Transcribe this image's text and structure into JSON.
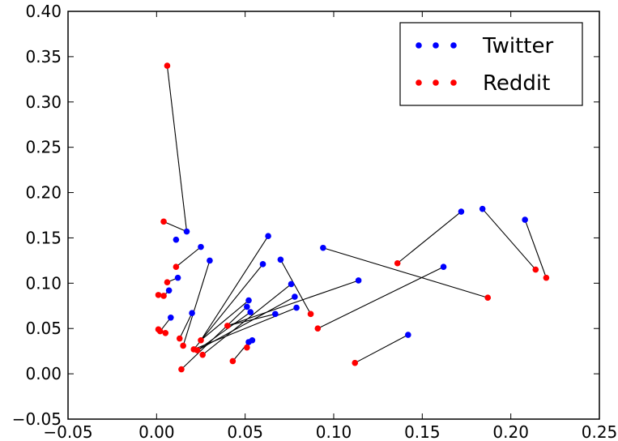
{
  "chart_data": {
    "type": "scatter",
    "title": "",
    "xlabel": "",
    "ylabel": "",
    "xlim": [
      -0.05,
      0.25
    ],
    "ylim": [
      -0.05,
      0.4
    ],
    "x_ticks": [
      "−0.05",
      "0.00",
      "0.05",
      "0.10",
      "0.15",
      "0.20",
      "0.25"
    ],
    "x_tick_values": [
      -0.05,
      0.0,
      0.05,
      0.1,
      0.15,
      0.2,
      0.25
    ],
    "y_ticks": [
      "−0.05",
      "0.00",
      "0.05",
      "0.10",
      "0.15",
      "0.20",
      "0.25",
      "0.30",
      "0.35",
      "0.40"
    ],
    "y_tick_values": [
      -0.05,
      0.0,
      0.05,
      0.1,
      0.15,
      0.2,
      0.25,
      0.3,
      0.35,
      0.4
    ],
    "grid": false,
    "legend": "top-right",
    "series": [
      {
        "name": "Twitter",
        "color": "#0000ff",
        "points": [
          [
            0.017,
            0.157
          ],
          [
            0.011,
            0.148
          ],
          [
            0.025,
            0.14
          ],
          [
            0.012,
            0.106
          ],
          [
            0.007,
            0.092
          ],
          [
            0.008,
            0.062
          ],
          [
            0.02,
            0.067
          ],
          [
            0.03,
            0.125
          ],
          [
            0.063,
            0.152
          ],
          [
            0.06,
            0.121
          ],
          [
            0.07,
            0.126
          ],
          [
            0.076,
            0.099
          ],
          [
            0.078,
            0.085
          ],
          [
            0.079,
            0.073
          ],
          [
            0.051,
            0.074
          ],
          [
            0.052,
            0.081
          ],
          [
            0.053,
            0.068
          ],
          [
            0.052,
            0.035
          ],
          [
            0.054,
            0.037
          ],
          [
            0.067,
            0.066
          ],
          [
            0.094,
            0.139
          ],
          [
            0.114,
            0.103
          ],
          [
            0.142,
            0.043
          ],
          [
            0.162,
            0.118
          ],
          [
            0.172,
            0.179
          ],
          [
            0.184,
            0.182
          ],
          [
            0.208,
            0.17
          ]
        ]
      },
      {
        "name": "Reddit",
        "color": "#ff0000",
        "points": [
          [
            0.006,
            0.34
          ],
          [
            0.004,
            0.168
          ],
          [
            0.011,
            0.118
          ],
          [
            0.001,
            0.087
          ],
          [
            0.004,
            0.086
          ],
          [
            0.006,
            0.101
          ],
          [
            0.001,
            0.049
          ],
          [
            0.002,
            0.047
          ],
          [
            0.005,
            0.045
          ],
          [
            0.013,
            0.039
          ],
          [
            0.015,
            0.031
          ],
          [
            0.014,
            0.005
          ],
          [
            0.021,
            0.027
          ],
          [
            0.023,
            0.026
          ],
          [
            0.025,
            0.037
          ],
          [
            0.026,
            0.021
          ],
          [
            0.04,
            0.053
          ],
          [
            0.043,
            0.014
          ],
          [
            0.051,
            0.029
          ],
          [
            0.087,
            0.066
          ],
          [
            0.091,
            0.05
          ],
          [
            0.112,
            0.012
          ],
          [
            0.136,
            0.122
          ],
          [
            0.187,
            0.084
          ],
          [
            0.214,
            0.115
          ],
          [
            0.22,
            0.106
          ]
        ]
      }
    ],
    "connections": [
      [
        [
          0.006,
          0.34
        ],
        [
          0.017,
          0.157
        ]
      ],
      [
        [
          0.004,
          0.168
        ],
        [
          0.017,
          0.157
        ]
      ],
      [
        [
          0.011,
          0.118
        ],
        [
          0.025,
          0.14
        ]
      ],
      [
        [
          0.006,
          0.101
        ],
        [
          0.012,
          0.106
        ]
      ],
      [
        [
          0.004,
          0.086
        ],
        [
          0.007,
          0.092
        ]
      ],
      [
        [
          0.002,
          0.047
        ],
        [
          0.008,
          0.062
        ]
      ],
      [
        [
          0.013,
          0.039
        ],
        [
          0.02,
          0.067
        ]
      ],
      [
        [
          0.015,
          0.031
        ],
        [
          0.03,
          0.125
        ]
      ],
      [
        [
          0.025,
          0.037
        ],
        [
          0.063,
          0.152
        ]
      ],
      [
        [
          0.021,
          0.027
        ],
        [
          0.06,
          0.121
        ]
      ],
      [
        [
          0.087,
          0.066
        ],
        [
          0.07,
          0.126
        ]
      ],
      [
        [
          0.026,
          0.021
        ],
        [
          0.076,
          0.099
        ]
      ],
      [
        [
          0.023,
          0.026
        ],
        [
          0.078,
          0.085
        ]
      ],
      [
        [
          0.021,
          0.027
        ],
        [
          0.079,
          0.073
        ]
      ],
      [
        [
          0.014,
          0.005
        ],
        [
          0.051,
          0.074
        ]
      ],
      [
        [
          0.025,
          0.037
        ],
        [
          0.052,
          0.081
        ]
      ],
      [
        [
          0.023,
          0.026
        ],
        [
          0.053,
          0.068
        ]
      ],
      [
        [
          0.043,
          0.014
        ],
        [
          0.052,
          0.035
        ]
      ],
      [
        [
          0.051,
          0.029
        ],
        [
          0.054,
          0.037
        ]
      ],
      [
        [
          0.04,
          0.053
        ],
        [
          0.067,
          0.066
        ]
      ],
      [
        [
          0.04,
          0.053
        ],
        [
          0.114,
          0.103
        ]
      ],
      [
        [
          0.187,
          0.084
        ],
        [
          0.094,
          0.139
        ]
      ],
      [
        [
          0.112,
          0.012
        ],
        [
          0.142,
          0.043
        ]
      ],
      [
        [
          0.091,
          0.05
        ],
        [
          0.162,
          0.118
        ]
      ],
      [
        [
          0.136,
          0.122
        ],
        [
          0.172,
          0.179
        ]
      ],
      [
        [
          0.184,
          0.182
        ],
        [
          0.214,
          0.115
        ]
      ],
      [
        [
          0.208,
          0.17
        ],
        [
          0.22,
          0.106
        ]
      ]
    ]
  }
}
